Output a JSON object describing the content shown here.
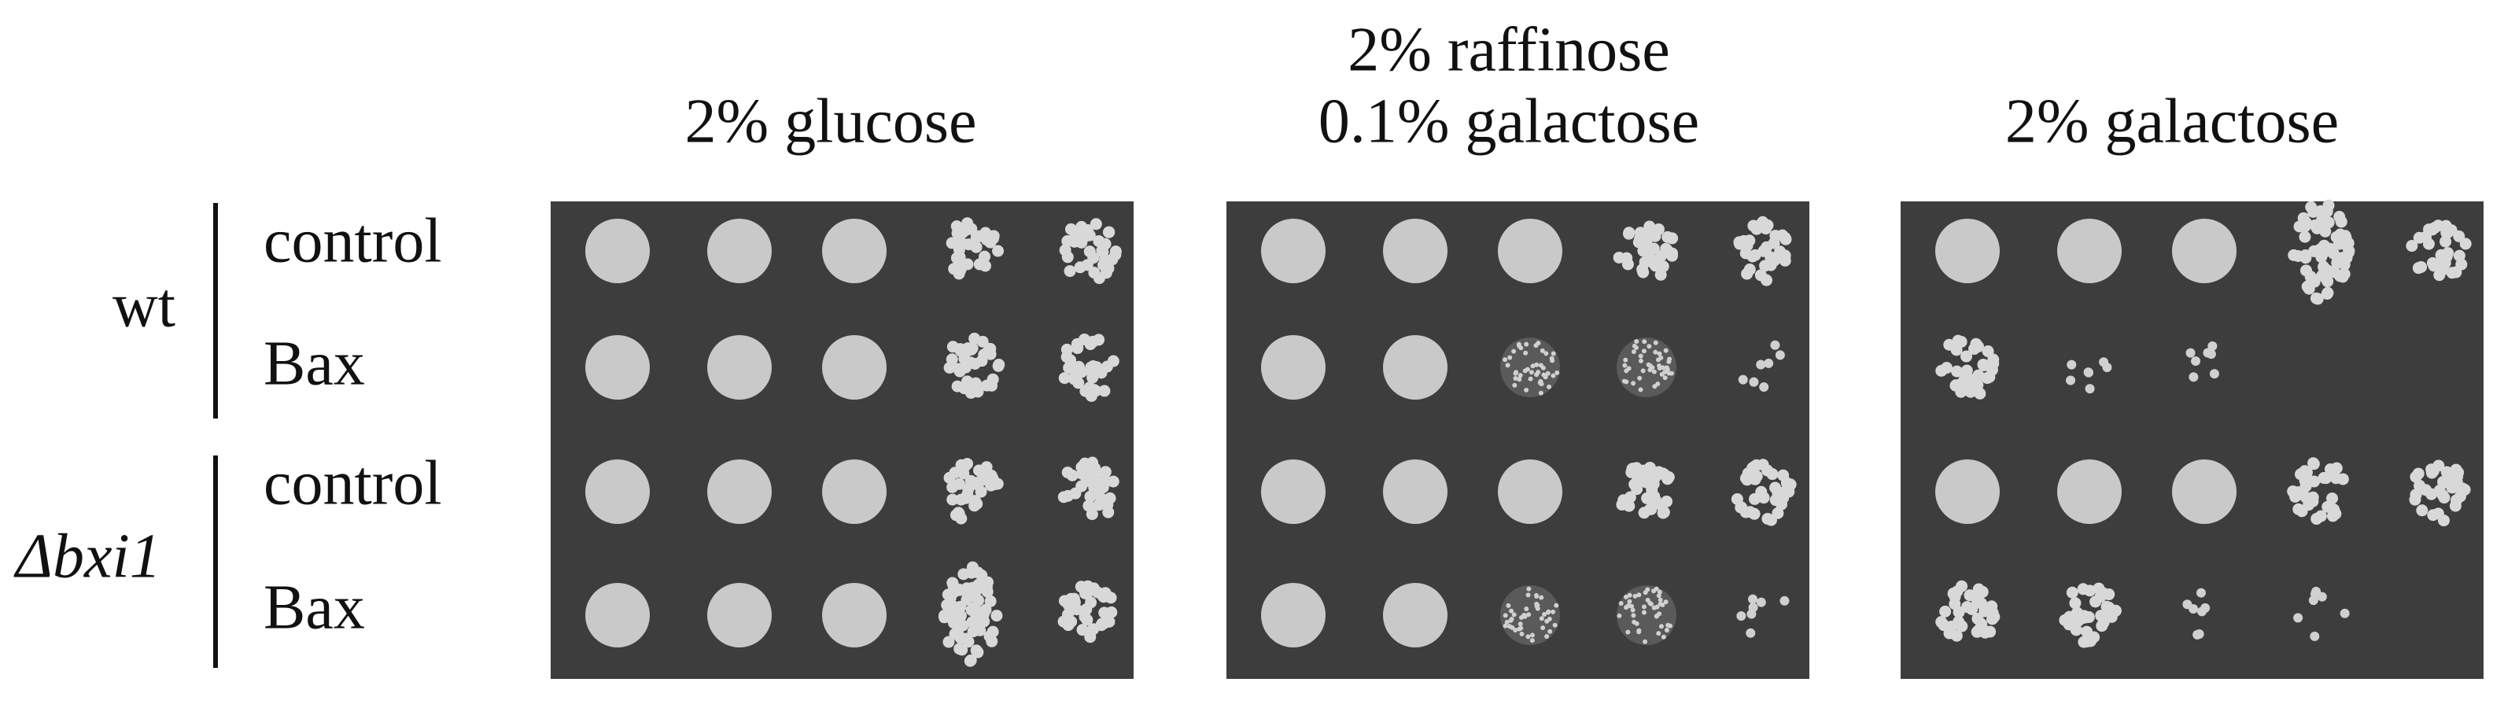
{
  "columns": [
    {
      "lines": [
        "2% glucose"
      ]
    },
    {
      "lines": [
        "2% raffinose",
        "0.1% galactose"
      ]
    },
    {
      "lines": [
        "2% galactose"
      ]
    }
  ],
  "groups": [
    {
      "label": "wt",
      "rows": [
        "control",
        "Bax"
      ]
    },
    {
      "label": "Δbxi1",
      "rows": [
        "control",
        "Bax"
      ]
    }
  ]
}
